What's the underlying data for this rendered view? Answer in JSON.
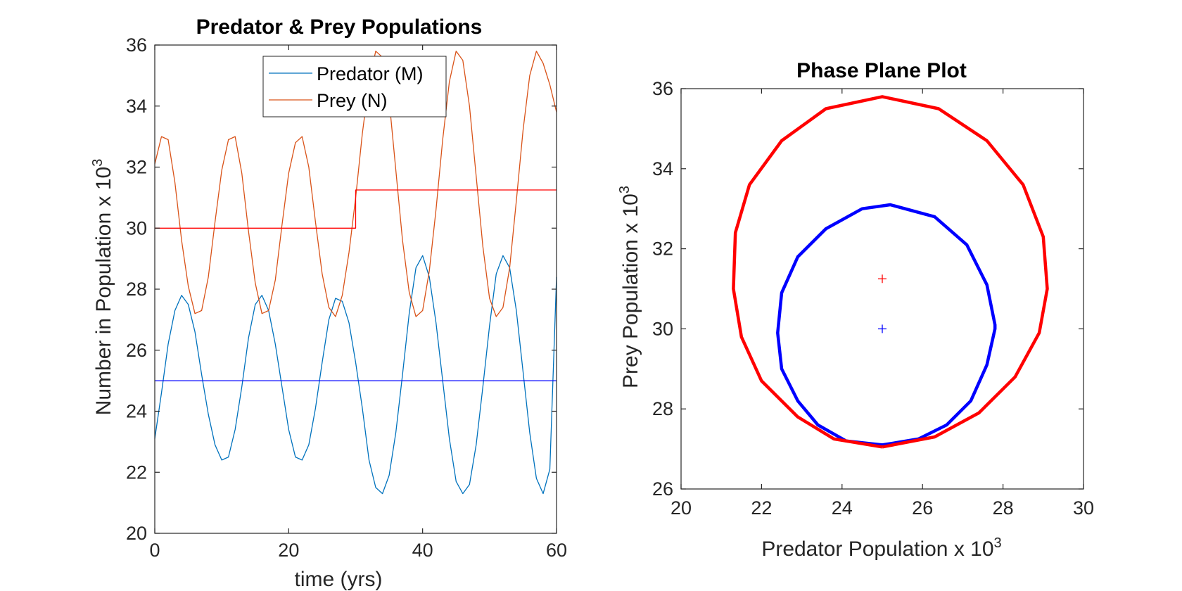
{
  "chart_data": [
    {
      "type": "line",
      "title": "Predator & Prey Populations",
      "xlabel": "time (yrs)",
      "ylabel": "Number in Population x 10",
      "ylabel_exponent": "3",
      "xlim": [
        0,
        60
      ],
      "ylim": [
        20,
        36
      ],
      "xticks": [
        "0",
        "20",
        "40",
        "60"
      ],
      "yticks": [
        "20",
        "22",
        "24",
        "26",
        "28",
        "30",
        "32",
        "34",
        "36"
      ],
      "grid": false,
      "legend": {
        "placement": "top",
        "entries": [
          "Predator (M)",
          "Prey (N)"
        ]
      },
      "series": [
        {
          "name": "Predator (M)",
          "color": "#0072BD",
          "x": [
            0,
            1,
            2,
            3,
            4,
            5,
            6,
            7,
            8,
            9,
            10,
            11,
            12,
            13,
            14,
            15,
            16,
            17,
            18,
            19,
            20,
            21,
            22,
            23,
            24,
            25,
            26,
            27,
            28,
            29,
            30,
            31,
            32,
            33,
            34,
            35,
            36,
            37,
            38,
            39,
            40,
            41,
            42,
            43,
            44,
            45,
            46,
            47,
            48,
            49,
            50,
            51,
            52,
            53,
            54,
            55,
            56,
            57,
            58,
            59,
            60
          ],
          "values": [
            23.1,
            24.6,
            26.2,
            27.3,
            27.8,
            27.5,
            26.6,
            25.2,
            23.9,
            22.9,
            22.4,
            22.5,
            23.4,
            24.8,
            26.4,
            27.5,
            27.8,
            27.3,
            26.2,
            24.8,
            23.4,
            22.5,
            22.4,
            22.9,
            24.1,
            25.6,
            27.0,
            27.7,
            27.6,
            26.9,
            25.6,
            24.1,
            22.4,
            21.5,
            21.3,
            21.9,
            23.3,
            25.2,
            27.2,
            28.7,
            29.1,
            28.4,
            26.9,
            25.0,
            23.1,
            21.7,
            21.3,
            21.6,
            22.9,
            24.8,
            26.8,
            28.5,
            29.1,
            28.7,
            27.3,
            25.3,
            23.3,
            21.8,
            21.3,
            22.1,
            28.4
          ]
        },
        {
          "name": "Prey (N)",
          "color": "#D95319",
          "x": [
            0,
            1,
            2,
            3,
            4,
            5,
            6,
            7,
            8,
            9,
            10,
            11,
            12,
            13,
            14,
            15,
            16,
            17,
            18,
            19,
            20,
            21,
            22,
            23,
            24,
            25,
            26,
            27,
            28,
            29,
            30,
            31,
            32,
            33,
            34,
            35,
            36,
            37,
            38,
            39,
            40,
            41,
            42,
            43,
            44,
            45,
            46,
            47,
            48,
            49,
            50,
            51,
            52,
            53,
            54,
            55,
            56,
            57,
            58,
            59,
            60
          ],
          "values": [
            32.1,
            33.0,
            32.9,
            31.5,
            29.6,
            28.1,
            27.2,
            27.3,
            28.4,
            30.2,
            31.9,
            32.9,
            33.0,
            31.8,
            29.9,
            28.2,
            27.2,
            27.3,
            28.3,
            30.1,
            31.8,
            32.8,
            33.0,
            32.0,
            30.2,
            28.5,
            27.4,
            27.1,
            27.8,
            29.2,
            31.0,
            33.1,
            34.8,
            35.8,
            35.6,
            34.2,
            31.9,
            29.6,
            27.9,
            27.1,
            27.3,
            28.6,
            30.6,
            32.9,
            34.8,
            35.8,
            35.5,
            34.0,
            31.7,
            29.4,
            27.7,
            27.1,
            27.4,
            28.7,
            30.9,
            33.2,
            35.0,
            35.8,
            35.4,
            34.7,
            33.8
          ]
        },
        {
          "name": "",
          "color": "#0000FF",
          "x": [
            0,
            60
          ],
          "values": [
            25,
            25
          ]
        },
        {
          "name": "",
          "color": "#FF0000",
          "x": [
            0,
            30,
            30,
            60
          ],
          "values": [
            30,
            30,
            31.25,
            31.25
          ]
        }
      ]
    },
    {
      "type": "line",
      "title": "Phase Plane Plot",
      "xlabel": "Predator Population x 10",
      "xlabel_exponent": "3",
      "ylabel": "Prey Population x 10",
      "ylabel_exponent": "3",
      "xlim": [
        20,
        30
      ],
      "ylim": [
        26,
        36
      ],
      "xticks": [
        "20",
        "22",
        "24",
        "26",
        "28",
        "30"
      ],
      "yticks": [
        "26",
        "28",
        "30",
        "32",
        "34",
        "36"
      ],
      "grid": false,
      "series": [
        {
          "name": "",
          "color": "#0000FF",
          "x": [
            25.0,
            25.9,
            26.6,
            27.2,
            27.6,
            27.8,
            27.8,
            27.6,
            27.1,
            26.3,
            25.2,
            24.5,
            23.6,
            22.9,
            22.5,
            22.4,
            22.5,
            22.9,
            23.4,
            24.1,
            25.0
          ],
          "values": [
            27.1,
            27.25,
            27.6,
            28.2,
            29.1,
            30.0,
            30.1,
            31.1,
            32.1,
            32.8,
            33.1,
            33.0,
            32.5,
            31.8,
            30.9,
            29.9,
            29.0,
            28.2,
            27.6,
            27.2,
            27.1
          ]
        },
        {
          "name": "",
          "color": "#FF0000",
          "x": [
            25.0,
            26.3,
            27.4,
            28.3,
            28.9,
            29.1,
            29.0,
            28.5,
            27.6,
            26.4,
            25.0,
            23.6,
            22.5,
            21.7,
            21.35,
            21.3,
            21.5,
            22.0,
            22.9,
            23.8,
            25.0
          ],
          "values": [
            27.05,
            27.3,
            27.9,
            28.8,
            29.9,
            31.0,
            32.3,
            33.6,
            34.7,
            35.5,
            35.8,
            35.5,
            34.7,
            33.6,
            32.4,
            31.0,
            29.8,
            28.7,
            27.8,
            27.25,
            27.05
          ]
        },
        {
          "name": "",
          "color": "#0000FF",
          "marker": "+",
          "x": [
            25
          ],
          "values": [
            30
          ]
        },
        {
          "name": "",
          "color": "#FF0000",
          "marker": "+",
          "x": [
            25
          ],
          "values": [
            31.25
          ]
        }
      ]
    }
  ]
}
